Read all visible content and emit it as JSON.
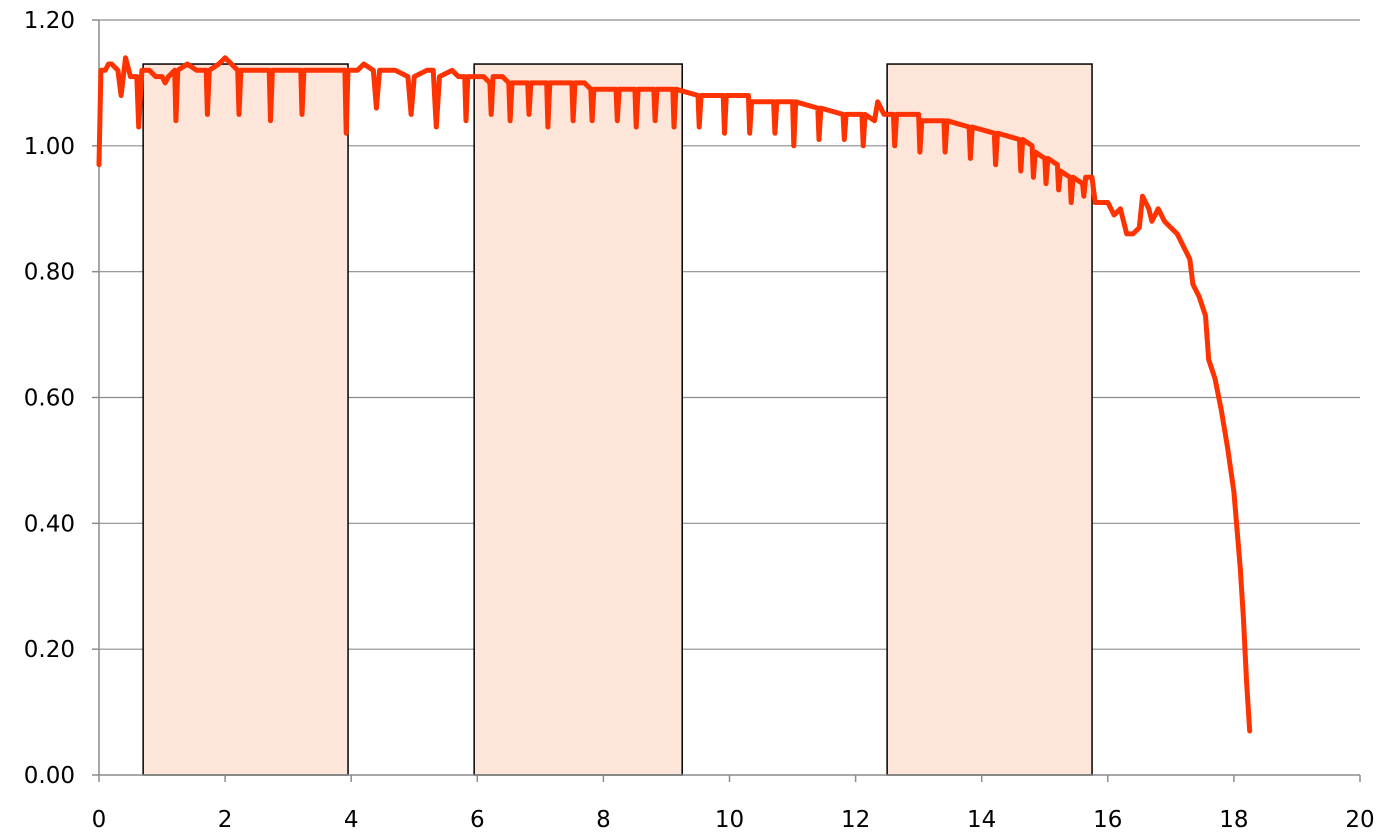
{
  "chart_data": {
    "type": "line",
    "title": "",
    "xlabel": "",
    "ylabel": "",
    "xlim": [
      0,
      20
    ],
    "ylim": [
      0,
      1.2
    ],
    "x_ticks": [
      0,
      2,
      4,
      6,
      8,
      10,
      12,
      14,
      16,
      18,
      20
    ],
    "x_tick_labels": [
      "0",
      "2",
      "4",
      "6",
      "8",
      "10",
      "12",
      "14",
      "16",
      "18",
      "20"
    ],
    "y_ticks": [
      0,
      0.2,
      0.4,
      0.6,
      0.8,
      1.0,
      1.2
    ],
    "y_tick_labels": [
      "0.00",
      "0.20",
      "0.40",
      "0.60",
      "0.80",
      "1.00",
      "1.20"
    ],
    "grid": {
      "horizontal": true,
      "vertical": false
    },
    "legend": "none",
    "colors": {
      "line": "#ff3300",
      "band_fill": "#fde5da",
      "band_stroke": "#000000",
      "grid": "#8c8c8c",
      "axis": "#8c8c8c"
    },
    "shaded_bands": [
      {
        "x_start": 0.7,
        "x_end": 3.95,
        "top": 1.13
      },
      {
        "x_start": 5.95,
        "x_end": 9.25,
        "top": 1.13
      },
      {
        "x_start": 12.5,
        "x_end": 15.75,
        "top": 1.13
      }
    ],
    "series": [
      {
        "points": [
          [
            0.0,
            0.97
          ],
          [
            0.03,
            1.12
          ],
          [
            0.1,
            1.12
          ],
          [
            0.15,
            1.13
          ],
          [
            0.2,
            1.13
          ],
          [
            0.3,
            1.12
          ],
          [
            0.35,
            1.08
          ],
          [
            0.42,
            1.14
          ],
          [
            0.5,
            1.11
          ],
          [
            0.6,
            1.11
          ],
          [
            0.63,
            1.03
          ],
          [
            0.68,
            1.12
          ],
          [
            0.8,
            1.12
          ],
          [
            0.9,
            1.11
          ],
          [
            1.0,
            1.11
          ],
          [
            1.05,
            1.1
          ],
          [
            1.1,
            1.11
          ],
          [
            1.2,
            1.12
          ],
          [
            1.22,
            1.04
          ],
          [
            1.25,
            1.12
          ],
          [
            1.4,
            1.13
          ],
          [
            1.55,
            1.12
          ],
          [
            1.7,
            1.12
          ],
          [
            1.72,
            1.05
          ],
          [
            1.75,
            1.12
          ],
          [
            1.9,
            1.13
          ],
          [
            2.0,
            1.14
          ],
          [
            2.1,
            1.13
          ],
          [
            2.2,
            1.12
          ],
          [
            2.22,
            1.05
          ],
          [
            2.25,
            1.12
          ],
          [
            2.4,
            1.12
          ],
          [
            2.55,
            1.12
          ],
          [
            2.7,
            1.12
          ],
          [
            2.72,
            1.04
          ],
          [
            2.75,
            1.12
          ],
          [
            2.9,
            1.12
          ],
          [
            3.05,
            1.12
          ],
          [
            3.2,
            1.12
          ],
          [
            3.22,
            1.05
          ],
          [
            3.25,
            1.12
          ],
          [
            3.4,
            1.12
          ],
          [
            3.55,
            1.12
          ],
          [
            3.7,
            1.12
          ],
          [
            3.9,
            1.12
          ],
          [
            3.92,
            1.02
          ],
          [
            3.95,
            1.12
          ],
          [
            4.1,
            1.12
          ],
          [
            4.2,
            1.13
          ],
          [
            4.35,
            1.12
          ],
          [
            4.4,
            1.06
          ],
          [
            4.45,
            1.12
          ],
          [
            4.7,
            1.12
          ],
          [
            4.9,
            1.11
          ],
          [
            4.95,
            1.05
          ],
          [
            5.0,
            1.11
          ],
          [
            5.2,
            1.12
          ],
          [
            5.3,
            1.12
          ],
          [
            5.35,
            1.03
          ],
          [
            5.4,
            1.11
          ],
          [
            5.6,
            1.12
          ],
          [
            5.7,
            1.11
          ],
          [
            5.8,
            1.11
          ],
          [
            5.82,
            1.04
          ],
          [
            5.85,
            1.11
          ],
          [
            6.0,
            1.11
          ],
          [
            6.1,
            1.11
          ],
          [
            6.2,
            1.1
          ],
          [
            6.22,
            1.05
          ],
          [
            6.25,
            1.11
          ],
          [
            6.4,
            1.11
          ],
          [
            6.5,
            1.1
          ],
          [
            6.52,
            1.04
          ],
          [
            6.55,
            1.1
          ],
          [
            6.75,
            1.1
          ],
          [
            6.8,
            1.1
          ],
          [
            6.82,
            1.05
          ],
          [
            6.85,
            1.1
          ],
          [
            7.0,
            1.1
          ],
          [
            7.1,
            1.1
          ],
          [
            7.12,
            1.03
          ],
          [
            7.15,
            1.1
          ],
          [
            7.4,
            1.1
          ],
          [
            7.5,
            1.1
          ],
          [
            7.52,
            1.04
          ],
          [
            7.55,
            1.1
          ],
          [
            7.7,
            1.1
          ],
          [
            7.8,
            1.09
          ],
          [
            7.82,
            1.04
          ],
          [
            7.85,
            1.09
          ],
          [
            8.0,
            1.09
          ],
          [
            8.2,
            1.09
          ],
          [
            8.22,
            1.04
          ],
          [
            8.25,
            1.09
          ],
          [
            8.5,
            1.09
          ],
          [
            8.52,
            1.03
          ],
          [
            8.55,
            1.09
          ],
          [
            8.8,
            1.09
          ],
          [
            8.82,
            1.04
          ],
          [
            8.85,
            1.09
          ],
          [
            9.1,
            1.09
          ],
          [
            9.12,
            1.03
          ],
          [
            9.15,
            1.09
          ],
          [
            9.5,
            1.08
          ],
          [
            9.52,
            1.03
          ],
          [
            9.55,
            1.08
          ],
          [
            9.9,
            1.08
          ],
          [
            9.92,
            1.02
          ],
          [
            9.95,
            1.08
          ],
          [
            10.3,
            1.08
          ],
          [
            10.32,
            1.02
          ],
          [
            10.35,
            1.07
          ],
          [
            10.7,
            1.07
          ],
          [
            10.72,
            1.02
          ],
          [
            10.75,
            1.07
          ],
          [
            11.0,
            1.07
          ],
          [
            11.02,
            1.0
          ],
          [
            11.05,
            1.07
          ],
          [
            11.4,
            1.06
          ],
          [
            11.42,
            1.01
          ],
          [
            11.45,
            1.06
          ],
          [
            11.8,
            1.05
          ],
          [
            11.82,
            1.01
          ],
          [
            11.85,
            1.05
          ],
          [
            12.1,
            1.05
          ],
          [
            12.12,
            1.0
          ],
          [
            12.15,
            1.05
          ],
          [
            12.3,
            1.04
          ],
          [
            12.35,
            1.07
          ],
          [
            12.45,
            1.05
          ],
          [
            12.6,
            1.05
          ],
          [
            12.62,
            1.0
          ],
          [
            12.65,
            1.05
          ],
          [
            13.0,
            1.05
          ],
          [
            13.02,
            0.99
          ],
          [
            13.05,
            1.04
          ],
          [
            13.4,
            1.04
          ],
          [
            13.42,
            0.99
          ],
          [
            13.45,
            1.04
          ],
          [
            13.8,
            1.03
          ],
          [
            13.82,
            0.98
          ],
          [
            13.85,
            1.03
          ],
          [
            14.2,
            1.02
          ],
          [
            14.22,
            0.97
          ],
          [
            14.25,
            1.02
          ],
          [
            14.6,
            1.01
          ],
          [
            14.62,
            0.96
          ],
          [
            14.65,
            1.01
          ],
          [
            14.8,
            1.0
          ],
          [
            14.82,
            0.95
          ],
          [
            14.85,
            0.99
          ],
          [
            15.0,
            0.98
          ],
          [
            15.02,
            0.94
          ],
          [
            15.05,
            0.98
          ],
          [
            15.2,
            0.97
          ],
          [
            15.22,
            0.93
          ],
          [
            15.25,
            0.96
          ],
          [
            15.4,
            0.95
          ],
          [
            15.42,
            0.91
          ],
          [
            15.45,
            0.95
          ],
          [
            15.6,
            0.94
          ],
          [
            15.62,
            0.92
          ],
          [
            15.65,
            0.95
          ],
          [
            15.75,
            0.95
          ],
          [
            15.8,
            0.91
          ],
          [
            16.0,
            0.91
          ],
          [
            16.1,
            0.89
          ],
          [
            16.2,
            0.9
          ],
          [
            16.3,
            0.86
          ],
          [
            16.4,
            0.86
          ],
          [
            16.5,
            0.87
          ],
          [
            16.55,
            0.92
          ],
          [
            16.65,
            0.9
          ],
          [
            16.7,
            0.88
          ],
          [
            16.8,
            0.9
          ],
          [
            16.9,
            0.88
          ],
          [
            17.0,
            0.87
          ],
          [
            17.1,
            0.86
          ],
          [
            17.2,
            0.84
          ],
          [
            17.3,
            0.82
          ],
          [
            17.35,
            0.78
          ],
          [
            17.45,
            0.76
          ],
          [
            17.55,
            0.73
          ],
          [
            17.6,
            0.66
          ],
          [
            17.7,
            0.63
          ],
          [
            17.8,
            0.58
          ],
          [
            17.9,
            0.52
          ],
          [
            18.0,
            0.45
          ],
          [
            18.1,
            0.33
          ],
          [
            18.15,
            0.25
          ],
          [
            18.2,
            0.15
          ],
          [
            18.25,
            0.07
          ]
        ]
      }
    ]
  }
}
